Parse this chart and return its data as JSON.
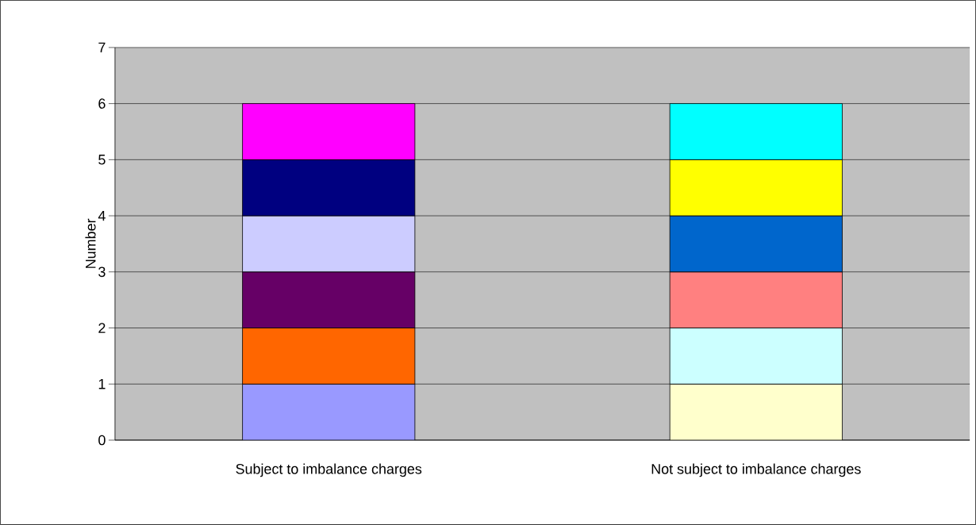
{
  "chart_data": {
    "type": "bar",
    "stacked": true,
    "ylabel": "Number",
    "categories": [
      "Subject to imbalance charges",
      "Not subject to imbalance charges"
    ],
    "series": [
      {
        "values": [
          1,
          1
        ],
        "colors": [
          "#9999ff",
          "#ffffcc"
        ]
      },
      {
        "values": [
          1,
          1
        ],
        "colors": [
          "#ff6600",
          "#ccffff"
        ]
      },
      {
        "values": [
          1,
          1
        ],
        "colors": [
          "#660066",
          "#ff8080"
        ]
      },
      {
        "values": [
          1,
          1
        ],
        "colors": [
          "#ccccff",
          "#0066cc"
        ]
      },
      {
        "values": [
          1,
          1
        ],
        "colors": [
          "#000080",
          "#ffff00"
        ]
      },
      {
        "values": [
          1,
          1
        ],
        "colors": [
          "#ff00ff",
          "#00ffff"
        ]
      }
    ],
    "ylim": [
      0,
      7
    ],
    "yticks": [
      0,
      1,
      2,
      3,
      4,
      5,
      6,
      7
    ],
    "grid": "y"
  }
}
